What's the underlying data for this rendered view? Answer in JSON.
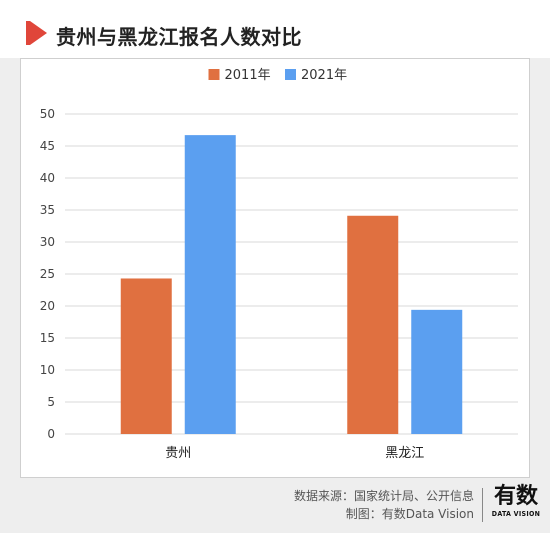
{
  "header": {
    "title": "贵州与黑龙江报名人数对比"
  },
  "chart_data": {
    "type": "bar",
    "categories": [
      "贵州",
      "黑龙江"
    ],
    "series": [
      {
        "name": "2011年",
        "values": [
          24.3,
          34.1
        ],
        "color": "#e07040"
      },
      {
        "name": "2021年",
        "values": [
          46.7,
          19.4
        ],
        "color": "#5b9ff0"
      }
    ],
    "ylim": [
      0,
      50
    ],
    "yticks": [
      0,
      5,
      10,
      15,
      20,
      25,
      30,
      35,
      40,
      45,
      50
    ],
    "grid": true,
    "legend": "top-center"
  },
  "footer": {
    "source": "数据来源：国家统计局、公开信息",
    "credit": "制图：有数Data Vision"
  },
  "brand": {
    "name": "有数",
    "sub": "DATA VISION"
  }
}
